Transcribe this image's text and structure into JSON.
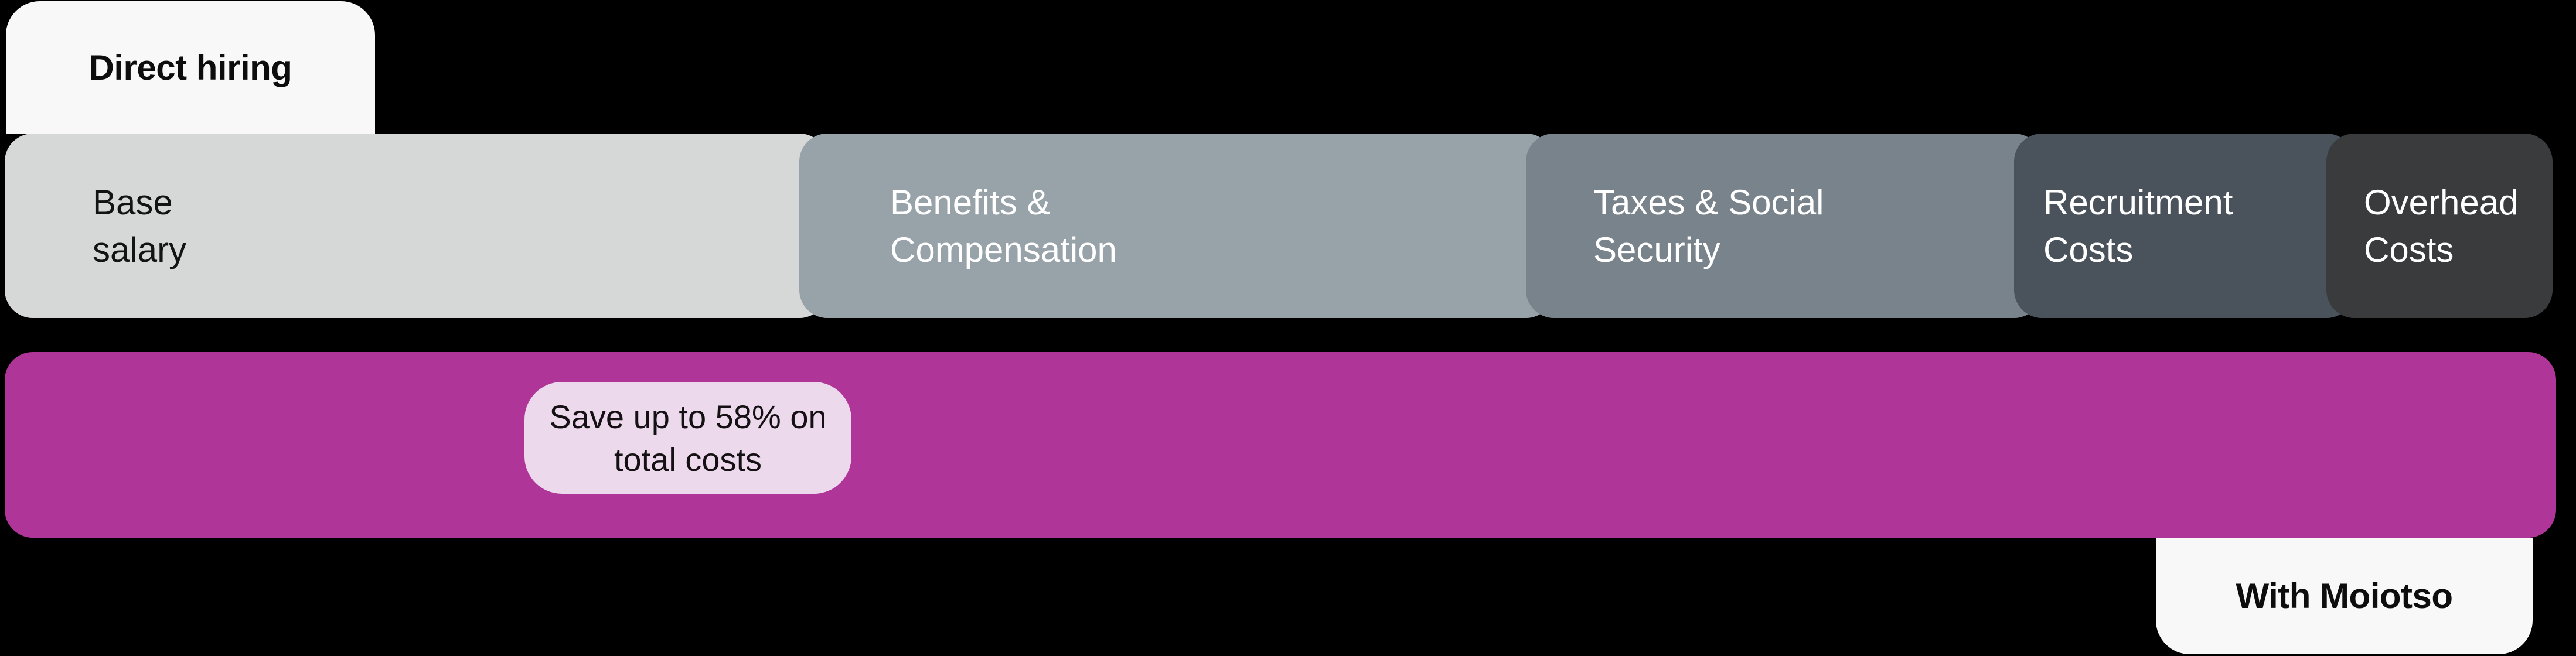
{
  "top_tab": {
    "label": "Direct hiring"
  },
  "bottom_tab": {
    "label": "With Moiotso"
  },
  "direct_bar": {
    "segments": [
      {
        "line1": "Base",
        "line2": "salary",
        "full_label": "Base salary"
      },
      {
        "line1": "Benefits &",
        "line2": "Compensation",
        "full_label": "Benefits & Compensation"
      },
      {
        "line1": "Taxes & Social",
        "line2": "Security",
        "full_label": "Taxes & Social Security"
      },
      {
        "line1": "Recruitment",
        "line2": "Costs",
        "full_label": "Recruitment Costs"
      },
      {
        "line1": "Overhead",
        "line2": "Costs",
        "full_label": "Overhead Costs"
      }
    ]
  },
  "moiotso_bar": {
    "badge": {
      "line1": "Save up to 58% on",
      "line2": "total costs",
      "full_label": "Save up to 58% on total costs"
    }
  },
  "colors": {
    "background": "#000000",
    "tab_background": "#F8F8F8",
    "segment_base_salary": "#D6D7D7",
    "segment_benefits_compensation": "#97A2A9",
    "segment_taxes_social_security": "#79838B",
    "segment_recruitment_costs": "#4A525C",
    "segment_overhead_costs": "#3A3B3D",
    "moiotso_bar": "#AF3598",
    "savings_badge": "#ECD9EB",
    "text_dark": "#131313",
    "text_light": "#FFFFFF"
  },
  "chart_data": {
    "type": "bar",
    "subtype": "horizontal-stacked-comparison",
    "title": "",
    "legend": false,
    "axes": false,
    "rows": [
      {
        "label": "Direct hiring",
        "stacked": true,
        "segments": [
          {
            "label": "Base salary",
            "width_pct_of_row": 31.2,
            "color": "#D6D7D7"
          },
          {
            "label": "Benefits & Compensation",
            "width_pct_of_row": 28.5,
            "color": "#97A2A9"
          },
          {
            "label": "Taxes & Social Security",
            "width_pct_of_row": 19.2,
            "color": "#79838B"
          },
          {
            "label": "Recruitment Costs",
            "width_pct_of_row": 12.2,
            "color": "#4A525C"
          },
          {
            "label": "Overhead Costs",
            "width_pct_of_row": 8.9,
            "color": "#3A3B3D"
          }
        ]
      },
      {
        "label": "With Moiotso",
        "stacked": false,
        "segments": [
          {
            "label": "With Moiotso total cost",
            "width_pct_of_row": 100,
            "color": "#AF3598"
          }
        ],
        "annotation": "Save up to 58% on total costs",
        "savings_pct": 58
      }
    ]
  }
}
